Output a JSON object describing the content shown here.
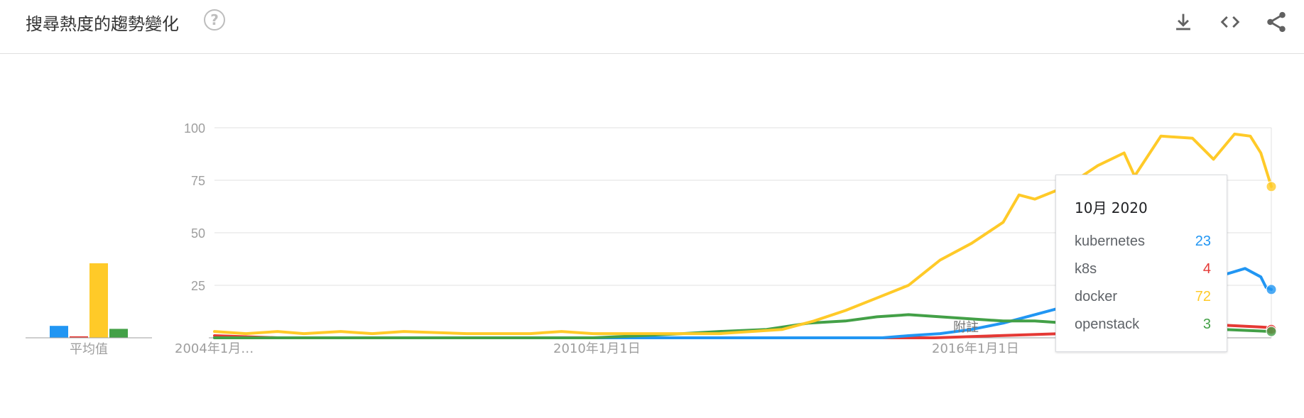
{
  "header": {
    "title": "搜尋熱度的趨勢變化",
    "help_glyph": "?",
    "icons": [
      "help-icon",
      "download-icon",
      "embed-code-icon",
      "share-icon"
    ]
  },
  "average": {
    "label": "平均值",
    "values": [
      4,
      0.5,
      25,
      3
    ]
  },
  "colors": {
    "kubernetes": "#2196f3",
    "k8s": "#e53935",
    "docker": "#ffca28",
    "openstack": "#43a047",
    "grid": "#e0e0e0",
    "tick": "#9e9e9e"
  },
  "annotation_label": "附註",
  "tooltip": {
    "date": "10月 2020",
    "rows": [
      {
        "name": "kubernetes",
        "value": "23",
        "color": "#2196f3"
      },
      {
        "name": "k8s",
        "value": "4",
        "color": "#e53935"
      },
      {
        "name": "docker",
        "value": "72",
        "color": "#ffca28"
      },
      {
        "name": "openstack",
        "value": "3",
        "color": "#43a047"
      }
    ]
  },
  "chart_data": {
    "type": "line",
    "title": "搜尋熱度的趨勢變化",
    "xlabel": "",
    "ylabel": "",
    "ylim": [
      0,
      100
    ],
    "xlim": [
      "2004-01",
      "2020-10"
    ],
    "grid": true,
    "y_ticks": [
      "100",
      "75",
      "50",
      "25"
    ],
    "x_ticks": [
      "2004年1月…",
      "2010年1月1日",
      "2016年1月1日"
    ],
    "x_tick_dates": [
      "2004-01",
      "2010-01",
      "2016-01"
    ],
    "series": [
      {
        "name": "kubernetes",
        "color": "#2196f3",
        "points": [
          [
            "2004-01",
            0
          ],
          [
            "2014-08",
            0
          ],
          [
            "2015-01",
            1
          ],
          [
            "2015-07",
            2
          ],
          [
            "2016-01",
            4
          ],
          [
            "2016-07",
            7
          ],
          [
            "2017-01",
            11
          ],
          [
            "2017-07",
            15
          ],
          [
            "2018-01",
            19
          ],
          [
            "2018-07",
            22
          ],
          [
            "2019-01",
            26
          ],
          [
            "2019-07",
            28
          ],
          [
            "2020-01",
            30
          ],
          [
            "2020-05",
            33
          ],
          [
            "2020-08",
            29
          ],
          [
            "2020-09",
            24
          ],
          [
            "2020-10",
            23
          ]
        ]
      },
      {
        "name": "k8s",
        "color": "#e53935",
        "points": [
          [
            "2004-01",
            1
          ],
          [
            "2005-01",
            0
          ],
          [
            "2006-06",
            0
          ],
          [
            "2007-06",
            0
          ],
          [
            "2015-06",
            0
          ],
          [
            "2016-06",
            1
          ],
          [
            "2017-06",
            2
          ],
          [
            "2018-06",
            3
          ],
          [
            "2019-06",
            4
          ],
          [
            "2020-01",
            6
          ],
          [
            "2020-09",
            5
          ],
          [
            "2020-10",
            4
          ]
        ]
      },
      {
        "name": "docker",
        "color": "#ffca28",
        "points": [
          [
            "2004-01",
            3
          ],
          [
            "2004-07",
            2
          ],
          [
            "2005-01",
            3
          ],
          [
            "2005-06",
            2
          ],
          [
            "2006-01",
            3
          ],
          [
            "2006-07",
            2
          ],
          [
            "2007-01",
            3
          ],
          [
            "2008-01",
            2
          ],
          [
            "2009-01",
            2
          ],
          [
            "2009-07",
            3
          ],
          [
            "2010-01",
            2
          ],
          [
            "2011-01",
            2
          ],
          [
            "2012-01",
            2
          ],
          [
            "2013-01",
            4
          ],
          [
            "2013-07",
            8
          ],
          [
            "2014-01",
            13
          ],
          [
            "2014-07",
            19
          ],
          [
            "2015-01",
            25
          ],
          [
            "2015-07",
            37
          ],
          [
            "2016-01",
            45
          ],
          [
            "2016-07",
            55
          ],
          [
            "2016-10",
            68
          ],
          [
            "2017-01",
            66
          ],
          [
            "2017-07",
            72
          ],
          [
            "2018-01",
            82
          ],
          [
            "2018-06",
            88
          ],
          [
            "2018-08",
            77
          ],
          [
            "2019-01",
            96
          ],
          [
            "2019-07",
            95
          ],
          [
            "2019-11",
            85
          ],
          [
            "2020-03",
            97
          ],
          [
            "2020-06",
            96
          ],
          [
            "2020-08",
            88
          ],
          [
            "2020-10",
            72
          ]
        ]
      },
      {
        "name": "openstack",
        "color": "#43a047",
        "points": [
          [
            "2004-01",
            0
          ],
          [
            "2010-01",
            0
          ],
          [
            "2010-10",
            1
          ],
          [
            "2011-06",
            2
          ],
          [
            "2012-01",
            3
          ],
          [
            "2012-10",
            4
          ],
          [
            "2013-06",
            7
          ],
          [
            "2014-01",
            8
          ],
          [
            "2014-07",
            10
          ],
          [
            "2015-01",
            11
          ],
          [
            "2015-07",
            10
          ],
          [
            "2016-01",
            9
          ],
          [
            "2016-07",
            8
          ],
          [
            "2017-01",
            8
          ],
          [
            "2017-07",
            7
          ],
          [
            "2018-01",
            6
          ],
          [
            "2018-07",
            5
          ],
          [
            "2019-01",
            5
          ],
          [
            "2019-07",
            5
          ],
          [
            "2020-01",
            4
          ],
          [
            "2020-10",
            3
          ]
        ]
      }
    ]
  }
}
